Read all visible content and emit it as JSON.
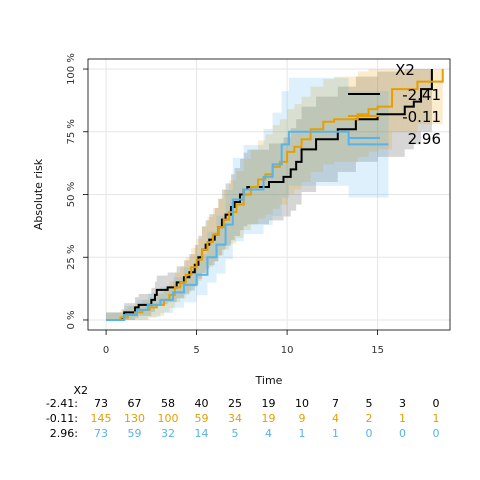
{
  "chart_data": {
    "type": "line",
    "title": "",
    "xlabel": "Time",
    "ylabel": "Absolute risk",
    "xlim": [
      -1.0,
      19.0
    ],
    "ylim": [
      -0.04,
      1.04
    ],
    "x_ticks": [
      0,
      5,
      10,
      15
    ],
    "y_ticks": [
      0,
      0.25,
      0.5,
      0.75,
      1.0
    ],
    "y_tick_labels": [
      "0 %",
      "25 %",
      "50 %",
      "75 %",
      "100 %"
    ],
    "grid": true,
    "legend": {
      "title": "X2",
      "placement": "top-right"
    },
    "series": [
      {
        "name": "-2.41",
        "color": "#000000",
        "x": [
          0,
          0.9,
          1.0,
          1.3,
          1.6,
          1.8,
          2.1,
          2.5,
          2.7,
          2.8,
          3.0,
          3.4,
          3.9,
          4.3,
          4.6,
          4.9,
          5.1,
          5.3,
          5.5,
          5.7,
          6.0,
          6.2,
          6.4,
          6.6,
          6.9,
          7.1,
          7.4,
          7.6,
          7.8,
          8.2,
          8.6,
          9.0,
          9.8,
          10.2,
          10.5,
          10.8,
          11.2,
          11.6,
          12.0,
          12.8,
          13.4,
          13.8,
          15.0,
          16.5,
          17.0,
          17.4,
          18.0
        ],
        "y": [
          0,
          0.01,
          0.03,
          0.03,
          0.05,
          0.06,
          0.06,
          0.08,
          0.1,
          0.12,
          0.12,
          0.13,
          0.15,
          0.17,
          0.19,
          0.22,
          0.25,
          0.28,
          0.3,
          0.32,
          0.34,
          0.37,
          0.4,
          0.42,
          0.45,
          0.47,
          0.5,
          0.52,
          0.53,
          0.53,
          0.53,
          0.55,
          0.57,
          0.6,
          0.63,
          0.68,
          0.68,
          0.72,
          0.72,
          0.76,
          0.76,
          0.8,
          0.82,
          0.85,
          0.87,
          0.92,
          1.0
        ]
      },
      {
        "name": "-0.11",
        "color": "#e69f00",
        "x": [
          0,
          0.8,
          1.2,
          1.6,
          2.0,
          2.4,
          2.8,
          3.2,
          3.5,
          3.8,
          4.1,
          4.4,
          4.7,
          5.0,
          5.3,
          5.6,
          5.9,
          6.2,
          6.5,
          6.8,
          7.2,
          7.6,
          8.0,
          8.4,
          8.8,
          9.2,
          9.6,
          10.0,
          10.4,
          10.8,
          11.3,
          12.0,
          12.6,
          13.3,
          13.9,
          14.5,
          15.0,
          15.8,
          16.4,
          17.2,
          18.6
        ],
        "y": [
          0,
          0.01,
          0.02,
          0.03,
          0.04,
          0.05,
          0.06,
          0.08,
          0.1,
          0.13,
          0.15,
          0.18,
          0.21,
          0.24,
          0.28,
          0.31,
          0.34,
          0.37,
          0.4,
          0.43,
          0.46,
          0.5,
          0.53,
          0.56,
          0.58,
          0.61,
          0.63,
          0.67,
          0.69,
          0.72,
          0.76,
          0.79,
          0.8,
          0.8,
          0.82,
          0.84,
          0.85,
          0.92,
          0.92,
          0.95,
          1.0
        ]
      },
      {
        "name": "2.96",
        "color": "#56b4e9",
        "x": [
          0,
          1.0,
          1.7,
          2.3,
          3.0,
          3.7,
          4.3,
          5.0,
          5.6,
          6.1,
          6.6,
          7.0,
          7.6,
          8.1,
          8.7,
          9.2,
          9.7,
          10.1,
          10.7,
          11.5,
          12.2,
          13.4,
          15.6
        ],
        "y": [
          0,
          0.02,
          0.04,
          0.06,
          0.08,
          0.11,
          0.14,
          0.18,
          0.25,
          0.3,
          0.38,
          0.48,
          0.52,
          0.52,
          0.57,
          0.62,
          0.7,
          0.75,
          0.75,
          0.75,
          0.75,
          0.7,
          0.7
        ]
      }
    ]
  },
  "risk_table": {
    "header": "X2",
    "times": [
      0,
      2,
      4,
      6,
      8,
      10,
      12,
      14,
      16,
      18,
      20
    ],
    "rows": [
      {
        "label": "-2.41:",
        "color": "#000000",
        "values": [
          "73",
          "67",
          "58",
          "40",
          "25",
          "19",
          "10",
          "7",
          "5",
          "3",
          "0"
        ]
      },
      {
        "label": "-0.11:",
        "color": "#e69f00",
        "values": [
          "145",
          "130",
          "100",
          "59",
          "34",
          "19",
          "9",
          "4",
          "2",
          "1",
          "1"
        ]
      },
      {
        "label": "2.96:",
        "color": "#56b4e9",
        "values": [
          "73",
          "59",
          "32",
          "14",
          "5",
          "4",
          "1",
          "1",
          "0",
          "0",
          "0"
        ]
      }
    ]
  }
}
